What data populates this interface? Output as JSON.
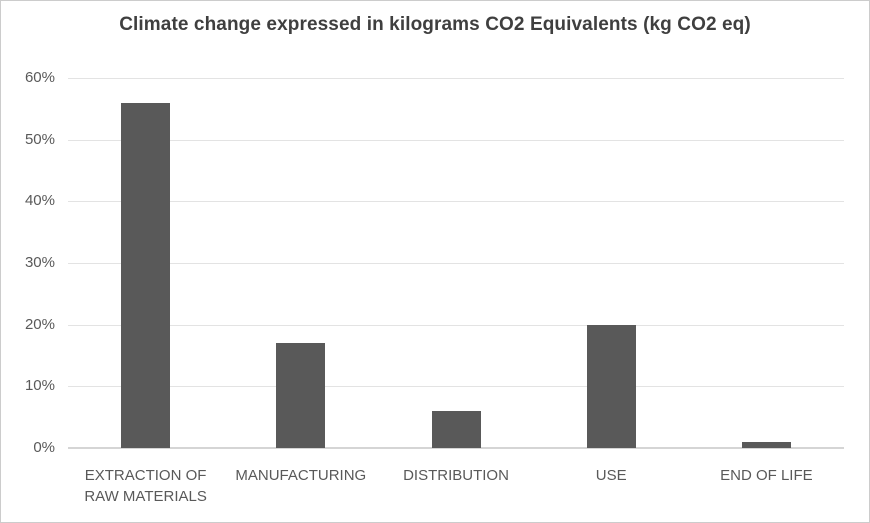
{
  "chart_data": {
    "type": "bar",
    "title": "Climate change expressed in kilograms CO2 Equivalents (kg CO2 eq)",
    "categories": [
      "EXTRACTION OF RAW MATERIALS",
      "MANUFACTURING",
      "DISTRIBUTION",
      "USE",
      "END OF LIFE"
    ],
    "values": [
      56,
      17,
      6,
      20,
      1
    ],
    "unit": "%",
    "xlabel": "",
    "ylabel": "",
    "ylim": [
      0,
      60
    ],
    "ytick_step": 10,
    "ytick_labels": [
      "0%",
      "10%",
      "20%",
      "30%",
      "40%",
      "50%",
      "60%"
    ],
    "grid": true,
    "legend": false
  },
  "colors": {
    "bar_fill": "#595959",
    "gridline": "#e3e3e3",
    "axis_line": "#d5d5d5",
    "title_text": "#3f3f3f",
    "tick_text": "#595959",
    "chart_border": "#cccccc",
    "background": "#ffffff"
  }
}
